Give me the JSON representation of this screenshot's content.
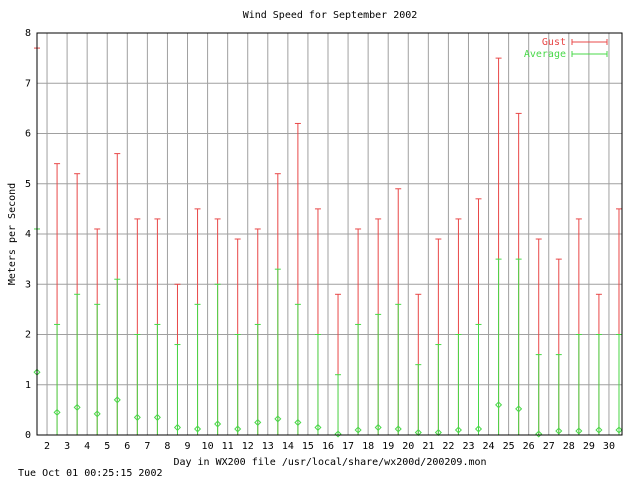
{
  "chart_data": {
    "type": "errorbar",
    "title": "Wind Speed for September 2002",
    "x_label": "Day in WX200 file /usr/local/share/wx200d/200209.mon",
    "y_label": "Meters per Second",
    "footer": "Tue Oct 01 00:25:15 2002",
    "x": [
      1.5,
      2.5,
      3.5,
      4.5,
      5.5,
      6.5,
      7.5,
      8.5,
      9.5,
      10.5,
      11.5,
      12.5,
      13.5,
      14.5,
      15.5,
      16.5,
      17.5,
      18.5,
      19.5,
      20.5,
      21.5,
      22.5,
      23.5,
      24.5,
      25.5,
      26.5,
      27.5,
      28.5,
      29.5,
      30.5
    ],
    "series": [
      {
        "name": "Gust",
        "color": "#e84848",
        "values": [
          7.7,
          5.4,
          5.2,
          4.1,
          5.6,
          4.3,
          4.3,
          3.0,
          4.5,
          4.3,
          3.9,
          4.1,
          5.2,
          6.2,
          4.5,
          2.8,
          4.1,
          4.3,
          4.9,
          2.8,
          3.9,
          4.3,
          4.7,
          7.5,
          6.4,
          3.9,
          3.5,
          4.3,
          2.8,
          4.5
        ]
      },
      {
        "name": "Average",
        "color": "#48d848",
        "values": [
          1.25,
          0.45,
          0.55,
          0.42,
          0.7,
          0.35,
          0.35,
          0.15,
          0.12,
          0.22,
          0.12,
          0.25,
          0.32,
          0.25,
          0.15,
          0.02,
          0.1,
          0.15,
          0.12,
          0.05,
          0.05,
          0.1,
          0.12,
          0.6,
          0.52,
          0.02,
          0.08,
          0.08,
          0.1,
          0.1
        ],
        "high": [
          4.1,
          2.2,
          2.8,
          2.6,
          3.1,
          2.0,
          2.2,
          1.8,
          2.6,
          3.0,
          2.0,
          2.2,
          3.3,
          2.6,
          2.0,
          1.2,
          2.2,
          2.4,
          2.6,
          1.4,
          1.8,
          2.0,
          2.2,
          3.5,
          3.5,
          1.6,
          1.6,
          2.0,
          2.0,
          2.0
        ]
      }
    ],
    "xlim": [
      1.5,
      30.65
    ],
    "ylim": [
      0,
      8
    ],
    "xticks": [
      2,
      3,
      4,
      5,
      6,
      7,
      8,
      9,
      10,
      11,
      12,
      13,
      14,
      15,
      16,
      17,
      18,
      19,
      20,
      21,
      22,
      23,
      24,
      25,
      26,
      27,
      28,
      29,
      30
    ],
    "yticks": [
      0,
      1,
      2,
      3,
      4,
      5,
      6,
      7,
      8
    ],
    "grid": true,
    "legend": "top-right"
  }
}
